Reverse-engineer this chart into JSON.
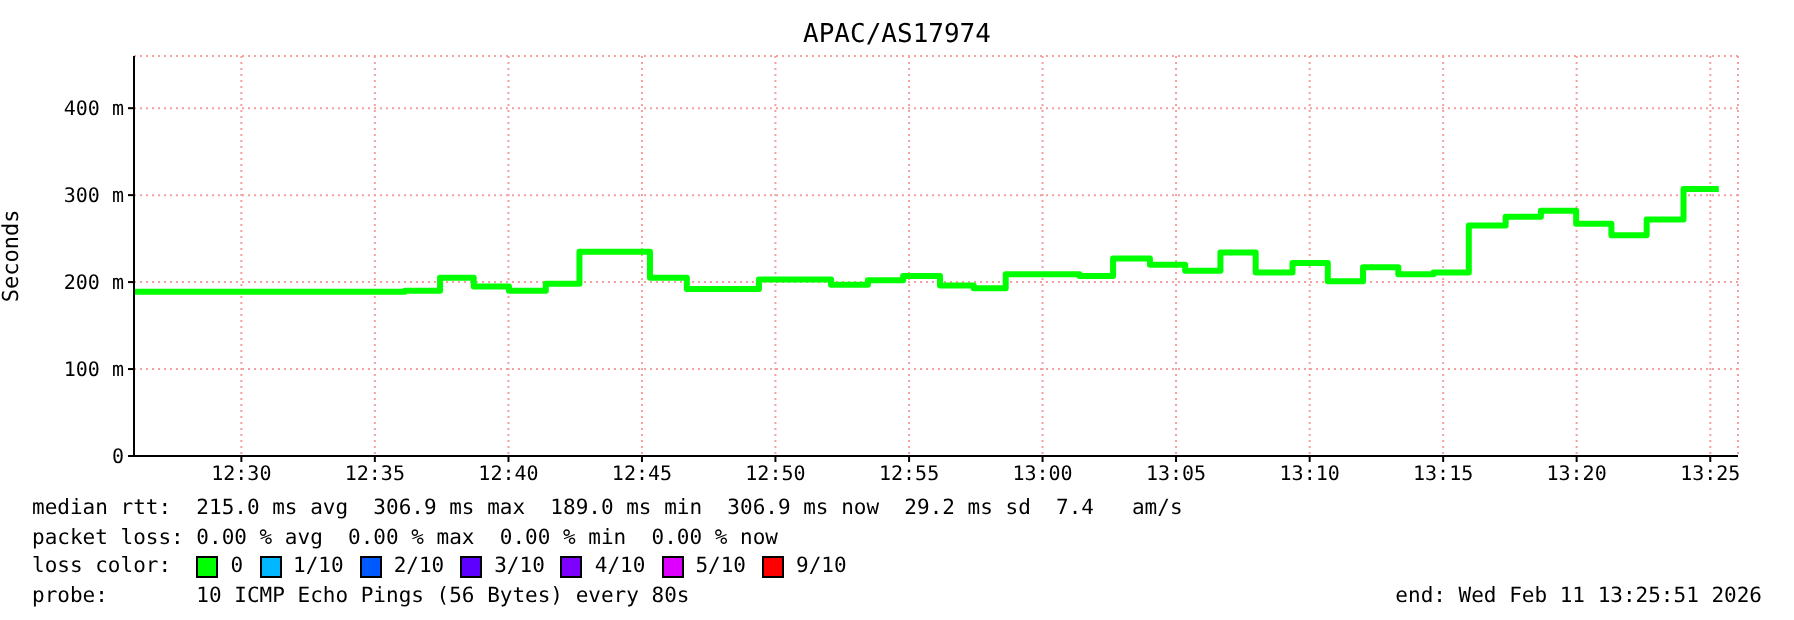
{
  "chart_data": {
    "type": "step",
    "title": "APAC/AS17974",
    "ylabel": "Seconds",
    "legend_title": "loss color:",
    "legend": "bottom",
    "grid": true,
    "marker": "none",
    "line_style": "solid",
    "x": [
      12.433,
      12.602,
      12.624,
      12.645,
      12.667,
      12.69,
      12.711,
      12.733,
      12.755,
      12.778,
      12.801,
      12.823,
      12.846,
      12.868,
      12.891,
      12.913,
      12.936,
      12.957,
      12.977,
      13.0,
      13.023,
      13.044,
      13.067,
      13.089,
      13.111,
      13.133,
      13.156,
      13.178,
      13.2,
      13.222,
      13.244,
      13.266,
      13.289,
      13.311,
      13.333,
      13.355,
      13.377,
      13.4,
      13.422
    ],
    "xlim": [
      12.433,
      13.434
    ],
    "xticks": [
      {
        "value": 12.5,
        "label": "12:30"
      },
      {
        "value": 12.5833,
        "label": "12:35"
      },
      {
        "value": 12.6667,
        "label": "12:40"
      },
      {
        "value": 12.75,
        "label": "12:45"
      },
      {
        "value": 12.8333,
        "label": "12:50"
      },
      {
        "value": 12.9167,
        "label": "12:55"
      },
      {
        "value": 13.0,
        "label": "13:00"
      },
      {
        "value": 13.0833,
        "label": "13:05"
      },
      {
        "value": 13.1667,
        "label": "13:10"
      },
      {
        "value": 13.25,
        "label": "13:15"
      },
      {
        "value": 13.3333,
        "label": "13:20"
      },
      {
        "value": 13.4167,
        "label": "13:25"
      }
    ],
    "ylim": [
      0,
      460
    ],
    "yticks": [
      0,
      {
        "value": 100,
        "label": "100 m"
      },
      {
        "value": 200,
        "label": "200 m"
      },
      {
        "value": 300,
        "label": "300 m"
      },
      {
        "value": 400,
        "label": "400 m"
      }
    ],
    "series": [
      {
        "name": "0",
        "color": "#00ff00",
        "values": [
          189,
          190,
          205,
          195,
          190,
          198,
          235,
          235,
          205,
          192,
          192,
          203,
          203,
          197,
          202,
          207,
          196,
          193,
          209,
          209,
          207,
          227,
          220,
          213,
          234,
          211,
          222,
          201,
          217,
          209,
          211,
          265,
          275,
          282,
          267,
          254,
          272,
          307,
          307
        ]
      },
      {
        "name": "1/10",
        "color": "#00b8ff",
        "values": [
          null,
          null,
          null,
          null,
          null,
          null,
          null,
          null,
          null,
          null,
          null,
          null,
          null,
          null,
          null,
          null,
          null,
          null,
          null,
          null,
          null,
          null,
          null,
          null,
          null,
          null,
          null,
          null,
          null,
          null,
          null,
          null,
          null,
          null,
          null,
          null,
          null,
          null,
          null
        ]
      },
      {
        "name": "2/10",
        "color": "#0059ff",
        "values": [
          null,
          null,
          null,
          null,
          null,
          null,
          null,
          null,
          null,
          null,
          null,
          null,
          null,
          null,
          null,
          null,
          null,
          null,
          null,
          null,
          null,
          null,
          null,
          null,
          null,
          null,
          null,
          null,
          null,
          null,
          null,
          null,
          null,
          null,
          null,
          null,
          null,
          null,
          null
        ]
      },
      {
        "name": "3/10",
        "color": "#5e00ff",
        "values": [
          null,
          null,
          null,
          null,
          null,
          null,
          null,
          null,
          null,
          null,
          null,
          null,
          null,
          null,
          null,
          null,
          null,
          null,
          null,
          null,
          null,
          null,
          null,
          null,
          null,
          null,
          null,
          null,
          null,
          null,
          null,
          null,
          null,
          null,
          null,
          null,
          null,
          null,
          null
        ]
      },
      {
        "name": "4/10",
        "color": "#7e00ff",
        "values": [
          null,
          null,
          null,
          null,
          null,
          null,
          null,
          null,
          null,
          null,
          null,
          null,
          null,
          null,
          null,
          null,
          null,
          null,
          null,
          null,
          null,
          null,
          null,
          null,
          null,
          null,
          null,
          null,
          null,
          null,
          null,
          null,
          null,
          null,
          null,
          null,
          null,
          null,
          null
        ]
      },
      {
        "name": "5/10",
        "color": "#dd00ff",
        "values": [
          null,
          null,
          null,
          null,
          null,
          null,
          null,
          null,
          null,
          null,
          null,
          null,
          null,
          null,
          null,
          null,
          null,
          null,
          null,
          null,
          null,
          null,
          null,
          null,
          null,
          null,
          null,
          null,
          null,
          null,
          null,
          null,
          null,
          null,
          null,
          null,
          null,
          null,
          null
        ]
      },
      {
        "name": "9/10",
        "color": "#ff0000",
        "values": [
          null,
          null,
          null,
          null,
          null,
          null,
          null,
          null,
          null,
          null,
          null,
          null,
          null,
          null,
          null,
          null,
          null,
          null,
          null,
          null,
          null,
          null,
          null,
          null,
          null,
          null,
          null,
          null,
          null,
          null,
          null,
          null,
          null,
          null,
          null,
          null,
          null,
          null,
          null
        ]
      }
    ],
    "annotations": [
      "median rtt:  215.0 ms avg  306.9 ms max  189.0 ms min  306.9 ms now  29.2 ms sd  7.4   am/s",
      "packet loss: 0.00 % avg  0.00 % max  0.00 % min  0.00 % now",
      "probe:       10 ICMP Echo Pings (56 Bytes) every 80s",
      "end: Wed Feb 11 13:25:51 2026"
    ]
  }
}
